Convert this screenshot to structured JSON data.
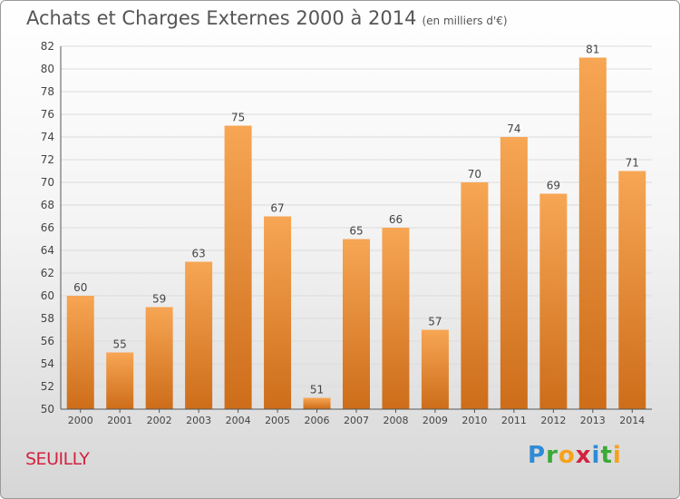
{
  "title": "Achats et Charges Externes 2000 à 2014",
  "unit": "(en milliers d'€)",
  "commune": "SEUILLY",
  "logo": {
    "text": "Proxiti",
    "letters": [
      {
        "ch": "P",
        "color": "#2e8bd6"
      },
      {
        "ch": "r",
        "color": "#3aaa35"
      },
      {
        "ch": "o",
        "color": "#f7a11a"
      },
      {
        "ch": "x",
        "color": "#d2233f"
      },
      {
        "ch": "i",
        "color": "#2e8bd6"
      },
      {
        "ch": "t",
        "color": "#3aaa35"
      },
      {
        "ch": "i",
        "color": "#f7a11a"
      }
    ]
  },
  "chart_data": {
    "type": "bar",
    "title": "Achats et Charges Externes 2000 à 2014",
    "categories": [
      "2000",
      "2001",
      "2002",
      "2003",
      "2004",
      "2005",
      "2006",
      "2007",
      "2008",
      "2009",
      "2010",
      "2011",
      "2012",
      "2013",
      "2014"
    ],
    "values": [
      60,
      55,
      59,
      63,
      75,
      67,
      51,
      65,
      66,
      57,
      70,
      74,
      69,
      81,
      71
    ],
    "ylim": [
      50,
      82
    ],
    "yticks": [
      50,
      52,
      54,
      56,
      58,
      60,
      62,
      64,
      66,
      68,
      70,
      72,
      74,
      76,
      78,
      80,
      82
    ],
    "grid": true,
    "bar_color_light": "#f7a654",
    "bar_color_dark": "#cd6d1a",
    "xlabel": "",
    "ylabel": ""
  }
}
